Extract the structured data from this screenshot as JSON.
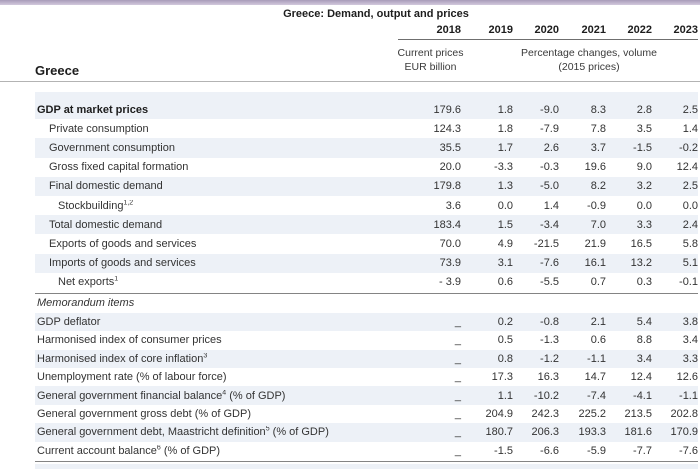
{
  "page": {
    "title": "Greece: Demand, output and prices",
    "country_label": "Greece"
  },
  "header": {
    "years": [
      "2018",
      "2019",
      "2020",
      "2021",
      "2022",
      "2023"
    ],
    "col2018_unit_line1": "Current prices",
    "col2018_unit_line2": "EUR billion",
    "volume_unit_line1": "Percentage changes, volume",
    "volume_unit_line2": "(2015 prices)"
  },
  "colors": {
    "accent_bar": "#a89bb9",
    "row_shade": "#edf1f7"
  },
  "table": {
    "sections": [
      {
        "heading": "",
        "rows": [
          {
            "label": "GDP at market prices",
            "indent": 0,
            "bold": true,
            "values": [
              "179.6",
              "1.8",
              "-9.0",
              "8.3",
              "2.8",
              "2.5"
            ]
          },
          {
            "label": "Private consumption",
            "indent": 1,
            "values": [
              "124.3",
              "1.8",
              "-7.9",
              "7.8",
              "3.5",
              "1.4"
            ]
          },
          {
            "label": "Government consumption",
            "indent": 1,
            "values": [
              "35.5",
              "1.7",
              "2.6",
              "3.7",
              "-1.5",
              "-0.2"
            ]
          },
          {
            "label": "Gross fixed capital formation",
            "indent": 1,
            "values": [
              "20.0",
              "-3.3",
              "-0.3",
              "19.6",
              "9.0",
              "12.4"
            ]
          },
          {
            "label": "Final domestic demand",
            "indent": 1,
            "values": [
              "179.8",
              "1.3",
              "-5.0",
              "8.2",
              "3.2",
              "2.5"
            ]
          },
          {
            "label": "Stockbuilding",
            "sup": "1,2",
            "indent": 2,
            "values": [
              "3.6",
              "0.0",
              "1.4",
              "-0.9",
              "0.0",
              "0.0"
            ]
          },
          {
            "label": "Total domestic demand",
            "indent": 1,
            "values": [
              "183.4",
              "1.5",
              "-3.4",
              "7.0",
              "3.3",
              "2.4"
            ]
          },
          {
            "label": "Exports of goods and services",
            "indent": 1,
            "values": [
              "70.0",
              "4.9",
              "-21.5",
              "21.9",
              "16.5",
              "5.8"
            ]
          },
          {
            "label": "Imports of goods and services",
            "indent": 1,
            "values": [
              "73.9",
              "3.1",
              "-7.6",
              "16.1",
              "13.2",
              "5.1"
            ]
          },
          {
            "label": "Net exports",
            "sup": "1",
            "indent": 2,
            "values": [
              "- 3.9",
              "0.6",
              "-5.5",
              "0.7",
              "0.3",
              "-0.1"
            ]
          }
        ]
      },
      {
        "heading": "Memorandum items",
        "rows": [
          {
            "label": "GDP deflator",
            "indent": 0,
            "values": [
              "_",
              "0.2",
              "-0.8",
              "2.1",
              "5.4",
              "3.8"
            ]
          },
          {
            "label": "Harmonised index of consumer prices",
            "indent": 0,
            "values": [
              "_",
              "0.5",
              "-1.3",
              "0.6",
              "8.8",
              "3.4"
            ]
          },
          {
            "label": "Harmonised index of core inflation",
            "sup": "3",
            "indent": 0,
            "values": [
              "_",
              "0.8",
              "-1.2",
              "-1.1",
              "3.4",
              "3.3"
            ]
          },
          {
            "label": "Unemployment rate (% of labour force)",
            "indent": 0,
            "values": [
              "_",
              "17.3",
              "16.3",
              "14.7",
              "12.4",
              "12.6"
            ]
          },
          {
            "label": "General government financial balance",
            "sup": "4",
            "after": " (% of GDP)",
            "indent": 0,
            "values": [
              "_",
              "1.1",
              "-10.2",
              "-7.4",
              "-4.1",
              "-1.1"
            ]
          },
          {
            "label": "General government gross debt (% of GDP)",
            "indent": 0,
            "values": [
              "_",
              "204.9",
              "242.3",
              "225.2",
              "213.5",
              "202.8"
            ]
          },
          {
            "label": "General government debt, Maastricht definition",
            "sup": "5",
            "after": " (% of GDP)",
            "indent": 0,
            "values": [
              "_",
              "180.7",
              "206.3",
              "193.3",
              "181.6",
              "170.9"
            ]
          },
          {
            "label": "Current account balance",
            "sup": "6",
            "after": " (% of GDP)",
            "indent": 0,
            "values": [
              "_",
              "-1.5",
              "-6.6",
              "-5.9",
              "-7.7",
              "-7.6"
            ]
          }
        ]
      }
    ]
  }
}
